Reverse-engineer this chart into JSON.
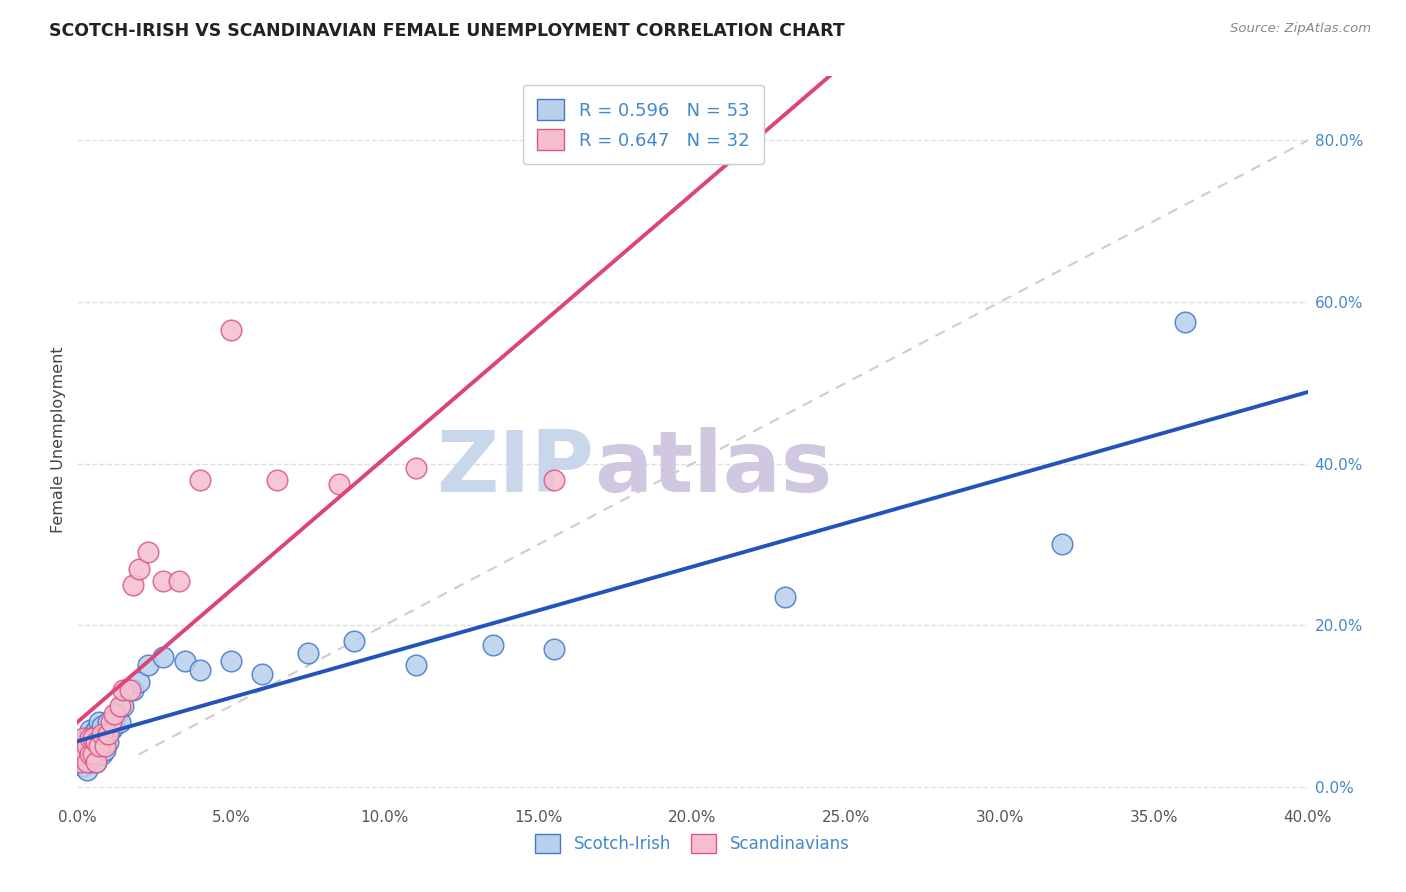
{
  "title": "SCOTCH-IRISH VS SCANDINAVIAN FEMALE UNEMPLOYMENT CORRELATION CHART",
  "source": "Source: ZipAtlas.com",
  "ylabel": "Female Unemployment",
  "legend_r_n_1": "R = 0.596   N = 53",
  "legend_r_n_2": "R = 0.647   N = 32",
  "legend_labels": [
    "Scotch-Irish",
    "Scandinavians"
  ],
  "scotch_irish_face": "#b8d0ec",
  "scandinavian_face": "#f5bfce",
  "scotch_irish_edge": "#4477cc",
  "scandinavian_edge": "#dd5588",
  "scotch_irish_line": "#2255bb",
  "scandinavian_line": "#dd4477",
  "diag_color": "#c8c8c8",
  "xmin": 0.0,
  "xmax": 0.4,
  "ymin": -0.02,
  "ymax": 0.88,
  "xtick_vals": [
    0.0,
    0.05,
    0.1,
    0.15,
    0.2,
    0.25,
    0.3,
    0.35,
    0.4
  ],
  "ytick_right_vals": [
    0.0,
    0.2,
    0.4,
    0.6,
    0.8
  ],
  "si_x": [
    0.001,
    0.001,
    0.001,
    0.002,
    0.002,
    0.002,
    0.002,
    0.003,
    0.003,
    0.003,
    0.003,
    0.003,
    0.004,
    0.004,
    0.004,
    0.004,
    0.005,
    0.005,
    0.005,
    0.006,
    0.006,
    0.006,
    0.007,
    0.007,
    0.007,
    0.008,
    0.008,
    0.008,
    0.009,
    0.009,
    0.01,
    0.01,
    0.011,
    0.012,
    0.013,
    0.014,
    0.015,
    0.018,
    0.02,
    0.023,
    0.028,
    0.035,
    0.04,
    0.05,
    0.06,
    0.075,
    0.09,
    0.11,
    0.135,
    0.155,
    0.23,
    0.32,
    0.36
  ],
  "si_y": [
    0.03,
    0.05,
    0.04,
    0.025,
    0.04,
    0.055,
    0.035,
    0.02,
    0.04,
    0.055,
    0.035,
    0.06,
    0.03,
    0.045,
    0.06,
    0.07,
    0.035,
    0.05,
    0.065,
    0.03,
    0.055,
    0.07,
    0.04,
    0.055,
    0.08,
    0.04,
    0.06,
    0.075,
    0.045,
    0.065,
    0.055,
    0.08,
    0.07,
    0.075,
    0.09,
    0.08,
    0.1,
    0.12,
    0.13,
    0.15,
    0.16,
    0.155,
    0.145,
    0.155,
    0.14,
    0.165,
    0.18,
    0.15,
    0.175,
    0.17,
    0.235,
    0.3,
    0.575
  ],
  "sc_x": [
    0.001,
    0.001,
    0.002,
    0.002,
    0.003,
    0.003,
    0.004,
    0.004,
    0.005,
    0.005,
    0.006,
    0.006,
    0.007,
    0.008,
    0.009,
    0.01,
    0.011,
    0.012,
    0.014,
    0.015,
    0.017,
    0.018,
    0.02,
    0.023,
    0.028,
    0.033,
    0.04,
    0.05,
    0.065,
    0.085,
    0.11,
    0.155
  ],
  "sc_y": [
    0.03,
    0.05,
    0.04,
    0.06,
    0.03,
    0.05,
    0.04,
    0.06,
    0.04,
    0.06,
    0.03,
    0.055,
    0.05,
    0.065,
    0.05,
    0.065,
    0.08,
    0.09,
    0.1,
    0.12,
    0.12,
    0.25,
    0.27,
    0.29,
    0.255,
    0.255,
    0.38,
    0.565,
    0.38,
    0.375,
    0.395,
    0.38
  ],
  "background_color": "#ffffff",
  "grid_color": "#e0e0e0",
  "watermark_text": "ZIPatlas",
  "watermark_color": "#ccd8ea",
  "text_color_blue": "#4488cc",
  "title_color": "#222222",
  "source_color": "#888888"
}
